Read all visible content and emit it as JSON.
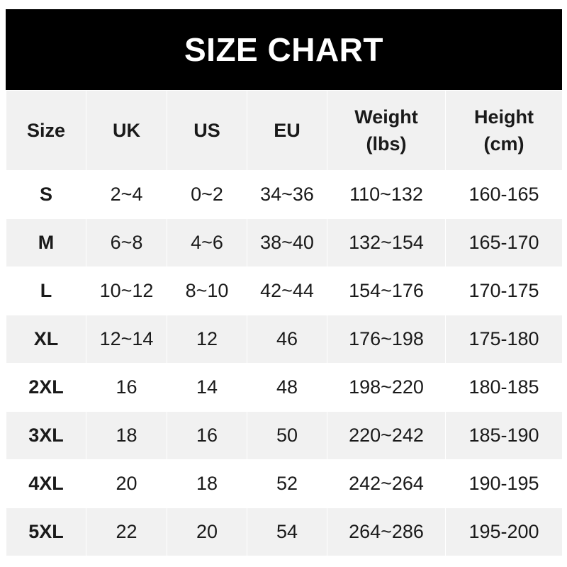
{
  "title": "SIZE CHART",
  "columns": [
    {
      "line1": "Size",
      "line2": ""
    },
    {
      "line1": "UK",
      "line2": ""
    },
    {
      "line1": "US",
      "line2": ""
    },
    {
      "line1": "EU",
      "line2": ""
    },
    {
      "line1": "Weight",
      "line2": "(lbs)"
    },
    {
      "line1": "Height",
      "line2": "(cm)"
    }
  ],
  "rows": [
    [
      "S",
      "2~4",
      "0~2",
      "34~36",
      "110~132",
      "160-165"
    ],
    [
      "M",
      "6~8",
      "4~6",
      "38~40",
      "132~154",
      "165-170"
    ],
    [
      "L",
      "10~12",
      "8~10",
      "42~44",
      "154~176",
      "170-175"
    ],
    [
      "XL",
      "12~14",
      "12",
      "46",
      "176~198",
      "175-180"
    ],
    [
      "2XL",
      "16",
      "14",
      "48",
      "198~220",
      "180-185"
    ],
    [
      "3XL",
      "18",
      "16",
      "50",
      "220~242",
      "185-190"
    ],
    [
      "4XL",
      "20",
      "18",
      "52",
      "242~264",
      "190-195"
    ],
    [
      "5XL",
      "22",
      "20",
      "54",
      "264~286",
      "195-200"
    ]
  ],
  "colors": {
    "header_bg": "#000000",
    "stripe": "#f1f1f1"
  }
}
